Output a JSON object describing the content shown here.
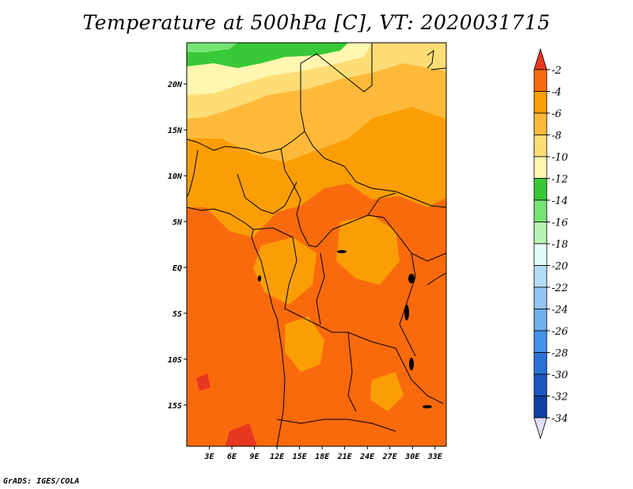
{
  "title": "Temperature at 500hPa [C], VT: 2020031715",
  "credit": "GrADS: IGES/COLA",
  "map": {
    "lon_range": [
      0,
      34.5
    ],
    "lat_range": [
      -19.5,
      24.5
    ],
    "lon_ticks": [
      "3E",
      "6E",
      "9E",
      "12E",
      "15E",
      "18E",
      "21E",
      "24E",
      "27E",
      "30E",
      "33E"
    ],
    "lat_ticks": [
      "20N",
      "15N",
      "10N",
      "5N",
      "EQ",
      "5S",
      "10S",
      "15S"
    ]
  },
  "colorbar": {
    "labels": [
      "-2",
      "-4",
      "-6",
      "-8",
      "-10",
      "-12",
      "-14",
      "-16",
      "-18",
      "-20",
      "-22",
      "-24",
      "-26",
      "-28",
      "-30",
      "-32",
      "-34"
    ],
    "colors": {
      "c_gt2": "#e8371f",
      "c_2_4": "#f96a0d",
      "c_4_6": "#fb9e06",
      "c_6_8": "#fdba3a",
      "c_8_10": "#fedd76",
      "c_10_12": "#fff6b0",
      "c_12_14": "#38c938",
      "c_14_16": "#74e474",
      "c_16_18": "#b7f5b4",
      "c_18_20": "#e2fdfb",
      "c_20_22": "#b4ddf7",
      "c_22_24": "#94c6f3",
      "c_24_26": "#6fb0ef",
      "c_26_28": "#4592ea",
      "c_28_30": "#2a72da",
      "c_30_32": "#1c55c0",
      "c_32_34": "#1040a3",
      "c_lt34": "#0e1168",
      "c_end": "#e0ddf6"
    }
  }
}
